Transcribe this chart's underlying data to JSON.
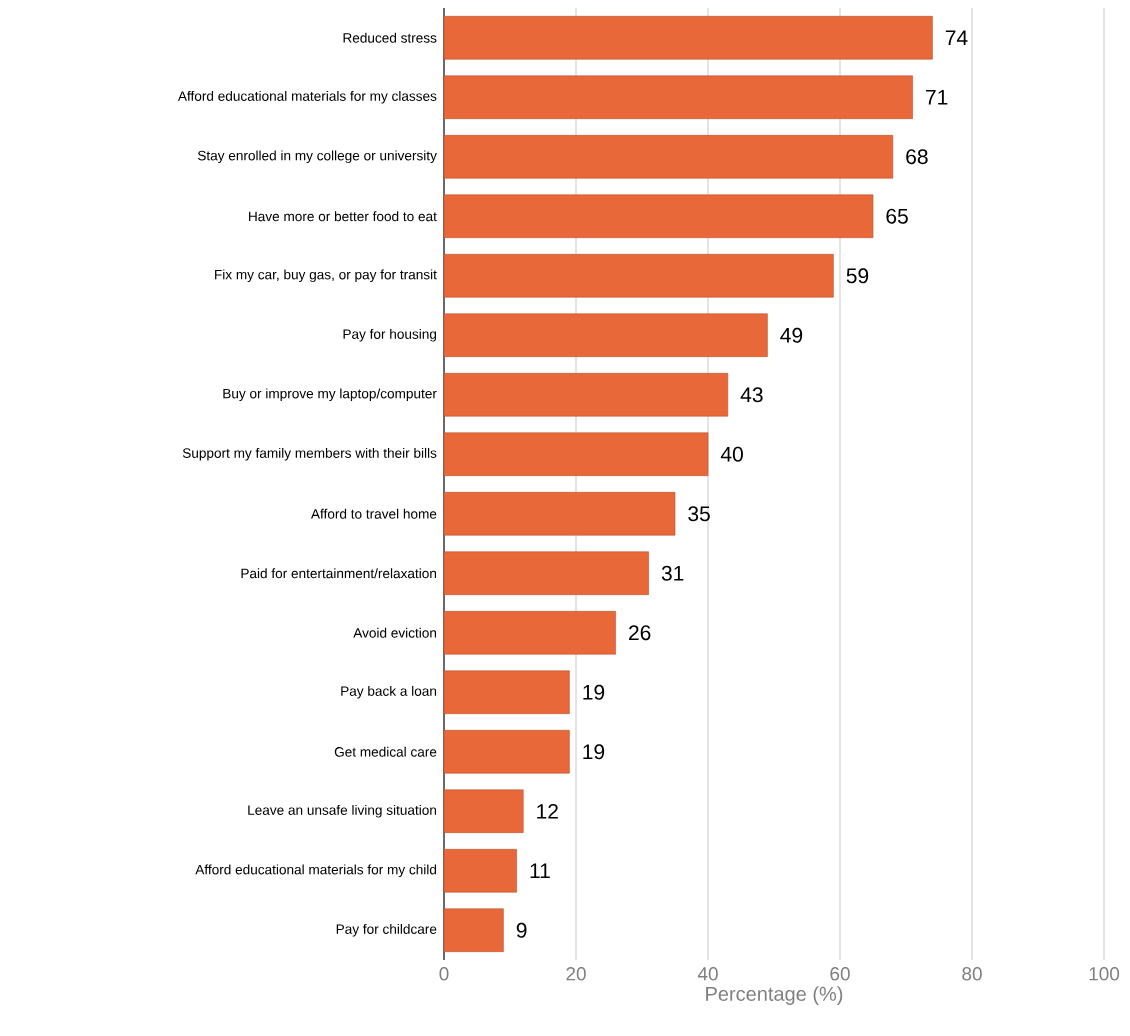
{
  "chart_data": {
    "type": "bar",
    "orientation": "horizontal",
    "xlabel": "Percentage (%)",
    "categories": [
      "Reduced stress",
      "Afford educational materials for my classes",
      "Stay enrolled in my college or university",
      "Have more or better food to eat",
      "Fix my car, buy gas, or pay for transit",
      "Pay for housing",
      "Buy or improve my laptop/computer",
      "Support my family members with their bills",
      "Afford to travel home",
      "Paid for entertainment/relaxation",
      "Avoid eviction",
      "Pay back a loan",
      "Get medical care",
      "Leave an unsafe living situation",
      "Afford educational materials for my child",
      "Pay for childcare"
    ],
    "values": [
      74,
      71,
      68,
      65,
      59,
      49,
      43,
      40,
      35,
      31,
      26,
      19,
      19,
      12,
      11,
      9
    ],
    "color": "#e8683a",
    "xlim": [
      0,
      100
    ],
    "xticks": [
      0,
      20,
      40,
      60,
      80,
      100
    ],
    "grid": "x",
    "data_labels": true
  }
}
